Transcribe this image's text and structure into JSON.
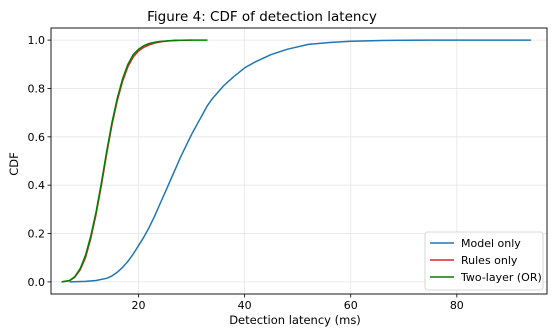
{
  "chart_data": {
    "type": "line",
    "title": "Figure 4: CDF of detection latency",
    "xlabel": "Detection latency (ms)",
    "ylabel": "CDF",
    "xlim": [
      3.5,
      97
    ],
    "ylim": [
      -0.05,
      1.05
    ],
    "xticks": [
      20,
      40,
      60,
      80
    ],
    "yticks": [
      0.0,
      0.2,
      0.4,
      0.6,
      0.8,
      1.0
    ],
    "grid": true,
    "legend_position": "lower-right",
    "series": [
      {
        "name": "Model only",
        "color": "#1f77b4",
        "x": [
          7,
          10,
          12,
          14,
          15,
          16,
          17,
          18,
          19,
          20,
          21,
          22,
          23,
          24,
          25,
          26,
          27,
          28,
          29,
          30,
          31,
          32,
          33,
          34,
          35,
          36,
          37,
          38,
          40,
          42,
          45,
          48,
          52,
          56,
          60,
          65,
          70,
          75,
          80,
          85,
          90,
          94
        ],
        "y": [
          0.0,
          0.002,
          0.006,
          0.015,
          0.025,
          0.04,
          0.06,
          0.085,
          0.115,
          0.15,
          0.185,
          0.225,
          0.27,
          0.32,
          0.37,
          0.42,
          0.47,
          0.52,
          0.565,
          0.61,
          0.65,
          0.69,
          0.73,
          0.76,
          0.785,
          0.81,
          0.83,
          0.85,
          0.885,
          0.91,
          0.94,
          0.962,
          0.982,
          0.99,
          0.995,
          0.998,
          0.999,
          1.0,
          1.0,
          1.0,
          1.0,
          1.0
        ]
      },
      {
        "name": "Rules only",
        "color": "#d62728",
        "x": [
          5.5,
          7,
          8,
          9,
          10,
          11,
          12,
          13,
          14,
          15,
          16,
          17,
          18,
          19,
          20,
          21,
          22,
          23,
          24,
          25,
          26,
          27,
          28,
          30
        ],
        "y": [
          0.0,
          0.005,
          0.02,
          0.05,
          0.1,
          0.18,
          0.28,
          0.4,
          0.53,
          0.65,
          0.75,
          0.83,
          0.89,
          0.93,
          0.955,
          0.97,
          0.98,
          0.987,
          0.992,
          0.995,
          0.997,
          0.998,
          0.999,
          1.0
        ]
      },
      {
        "name": "Two-layer (OR)",
        "color": "#008000",
        "x": [
          5.5,
          7,
          8,
          9,
          10,
          11,
          12,
          13,
          14,
          15,
          16,
          17,
          18,
          19,
          20,
          21,
          22,
          23,
          24,
          25,
          26,
          27,
          28,
          30,
          33
        ],
        "y": [
          0.0,
          0.006,
          0.022,
          0.055,
          0.11,
          0.19,
          0.29,
          0.41,
          0.54,
          0.66,
          0.76,
          0.84,
          0.9,
          0.94,
          0.962,
          0.977,
          0.986,
          0.991,
          0.994,
          0.996,
          0.998,
          0.999,
          0.999,
          1.0,
          1.0
        ]
      }
    ]
  }
}
